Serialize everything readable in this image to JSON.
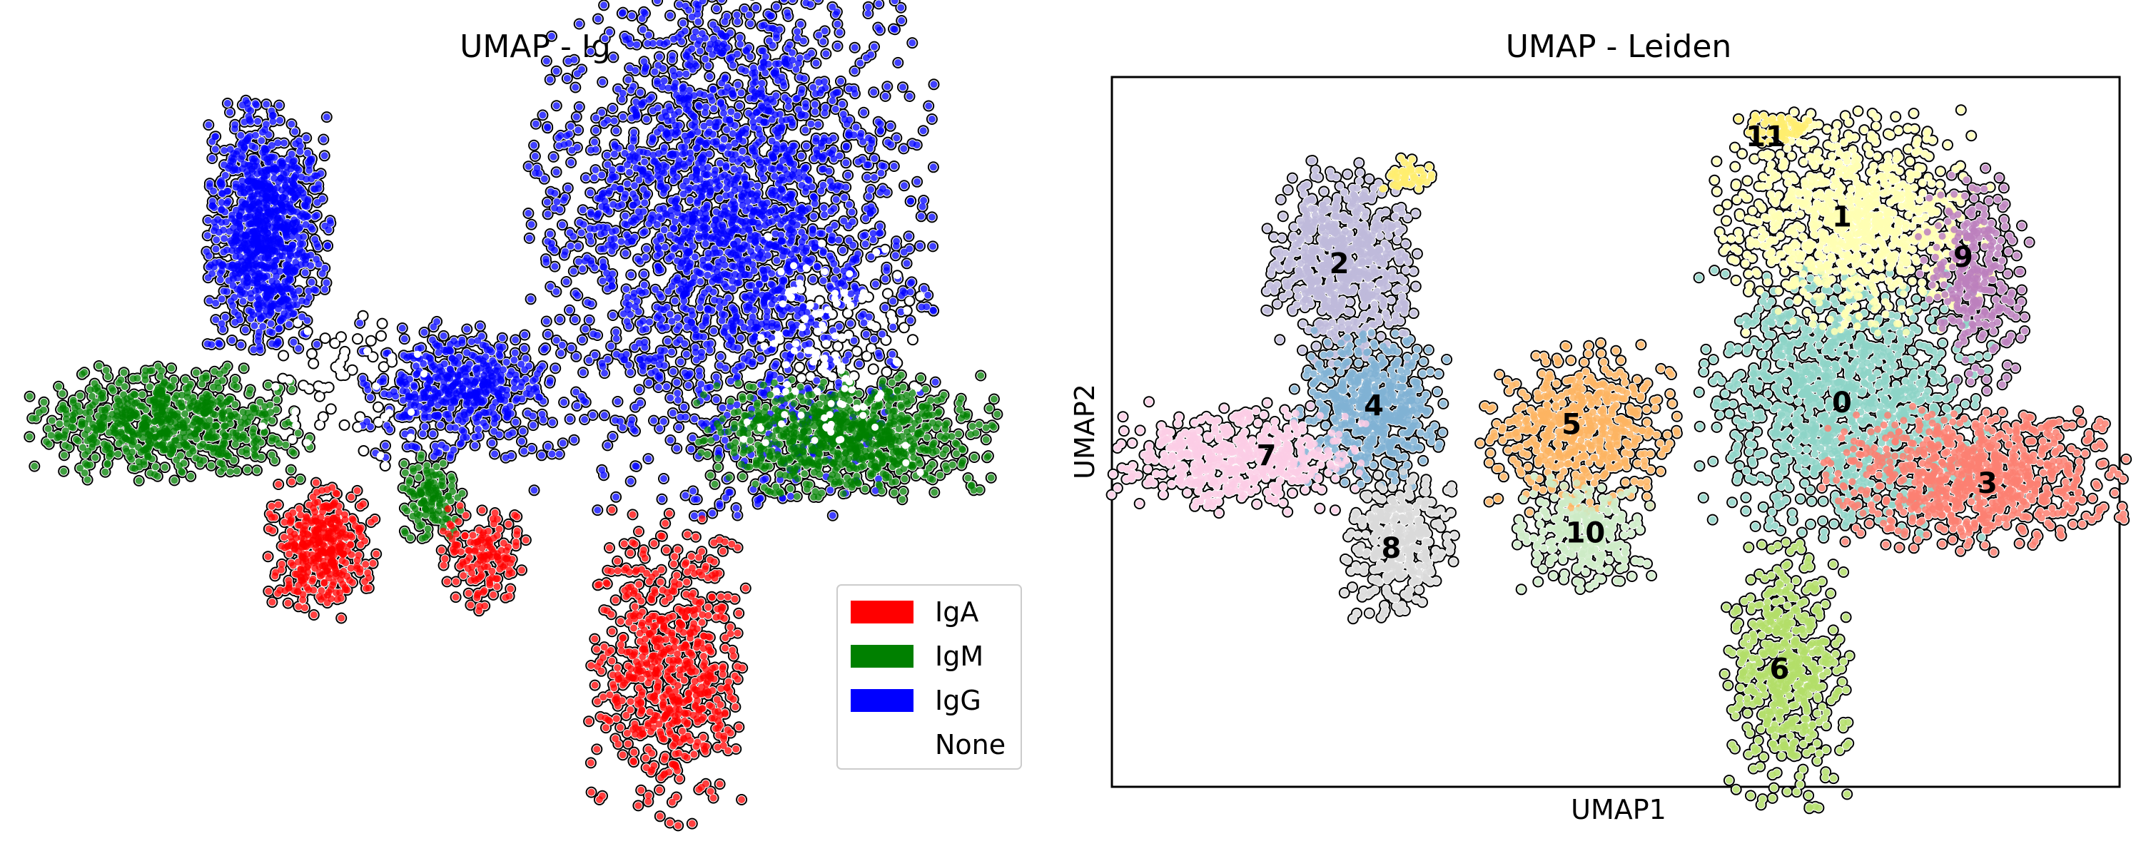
{
  "chart_data": [
    {
      "type": "scatter",
      "title": "UMAP - Ig",
      "xlabel": "",
      "ylabel": "",
      "legend": {
        "placement": "bottom-right",
        "entries": [
          {
            "name": "IgA",
            "color": "#ff0000"
          },
          {
            "name": "IgM",
            "color": "#008000"
          },
          {
            "name": "IgG",
            "color": "#0000ff"
          },
          {
            "name": "None",
            "color": "#ffffff"
          }
        ]
      },
      "colors": {
        "IgA": "#ff0000",
        "IgM": "#008000",
        "IgG": "#0000ff",
        "None": "#ffffff"
      },
      "groups": [
        {
          "category": "IgG",
          "cx": 2.2,
          "cy": 13.4,
          "rx": 1.0,
          "ry": 2.2,
          "n": 900
        },
        {
          "category": "IgG",
          "cx": 15.5,
          "cy": 13.8,
          "rx": 3.2,
          "ry": 5.2,
          "n": 2200
        },
        {
          "category": "IgG",
          "cx": 7.8,
          "cy": 8.3,
          "rx": 1.6,
          "ry": 1.2,
          "n": 450
        },
        {
          "category": "IgM",
          "cx": -0.6,
          "cy": 7.2,
          "rx": 2.2,
          "ry": 1.0,
          "n": 650
        },
        {
          "category": "IgM",
          "cx": 18.8,
          "cy": 6.8,
          "rx": 2.4,
          "ry": 1.1,
          "n": 800
        },
        {
          "category": "IgM",
          "cx": 6.9,
          "cy": 4.8,
          "rx": 0.5,
          "ry": 0.8,
          "n": 120
        },
        {
          "category": "IgA",
          "cx": 3.8,
          "cy": 3.2,
          "rx": 0.9,
          "ry": 1.2,
          "n": 350
        },
        {
          "category": "IgA",
          "cx": 8.5,
          "cy": 3.0,
          "rx": 0.7,
          "ry": 1.0,
          "n": 140
        },
        {
          "category": "IgA",
          "cx": 13.8,
          "cy": -0.5,
          "rx": 1.3,
          "ry": 2.8,
          "n": 600
        },
        {
          "category": "None",
          "cx": 4.5,
          "cy": 8.5,
          "rx": 1.5,
          "ry": 1.5,
          "n": 60
        },
        {
          "category": "None",
          "cx": 18.5,
          "cy": 9.5,
          "rx": 1.5,
          "ry": 2.2,
          "n": 130
        }
      ]
    },
    {
      "type": "scatter",
      "title": "UMAP - Leiden",
      "xlabel": "UMAP1",
      "ylabel": "UMAP2",
      "clusters": [
        {
          "label": "0",
          "color": "#8dd3c7",
          "cx": 16.5,
          "cy": 8.0,
          "rx": 2.3,
          "ry": 2.4,
          "n": 1100
        },
        {
          "label": "1",
          "color": "#ffffb3",
          "cx": 16.7,
          "cy": 13.8,
          "rx": 2.2,
          "ry": 2.0,
          "n": 900
        },
        {
          "label": "2",
          "color": "#bebada",
          "cx": 2.0,
          "cy": 12.5,
          "rx": 1.2,
          "ry": 1.8,
          "n": 650
        },
        {
          "label": "3",
          "color": "#fb8072",
          "cx": 20.2,
          "cy": 5.5,
          "rx": 2.4,
          "ry": 1.3,
          "n": 800
        },
        {
          "label": "4",
          "color": "#80b1d3",
          "cx": 2.8,
          "cy": 7.8,
          "rx": 1.2,
          "ry": 1.4,
          "n": 480
        },
        {
          "label": "5",
          "color": "#fdb462",
          "cx": 8.8,
          "cy": 7.2,
          "rx": 1.6,
          "ry": 1.5,
          "n": 500
        },
        {
          "label": "6",
          "color": "#b3de69",
          "cx": 14.8,
          "cy": -0.7,
          "rx": 1.0,
          "ry": 2.4,
          "n": 500
        },
        {
          "label": "7",
          "color": "#fccde5",
          "cx": -1.0,
          "cy": 6.2,
          "rx": 2.0,
          "ry": 1.0,
          "n": 500
        },
        {
          "label": "8",
          "color": "#d9d9d9",
          "cx": 3.6,
          "cy": 3.4,
          "rx": 0.9,
          "ry": 1.3,
          "n": 320
        },
        {
          "label": "9",
          "color": "#bc80bd",
          "cx": 20.2,
          "cy": 12.0,
          "rx": 0.9,
          "ry": 2.0,
          "n": 280
        },
        {
          "label": "10",
          "color": "#ccebc5",
          "cx": 8.9,
          "cy": 3.8,
          "rx": 1.1,
          "ry": 1.0,
          "n": 260
        },
        {
          "label": "11",
          "color": "#ffed6f",
          "cx": 14.5,
          "cy": 16.9,
          "rx": 0.6,
          "ry": 0.3,
          "n": 60
        },
        {
          "label": "",
          "color": "#ffed6f",
          "cx": 3.8,
          "cy": 15.3,
          "rx": 0.6,
          "ry": 0.4,
          "n": 50
        }
      ],
      "label_positions": [
        {
          "label": "0",
          "x": 16.4,
          "y": 8.0
        },
        {
          "label": "1",
          "x": 16.4,
          "y": 14.0
        },
        {
          "label": "2",
          "x": 1.9,
          "y": 12.5
        },
        {
          "label": "3",
          "x": 20.6,
          "y": 5.4
        },
        {
          "label": "4",
          "x": 2.9,
          "y": 7.9
        },
        {
          "label": "5",
          "x": 8.6,
          "y": 7.3
        },
        {
          "label": "6",
          "x": 14.6,
          "y": -0.6
        },
        {
          "label": "7",
          "x": -0.2,
          "y": 6.3
        },
        {
          "label": "8",
          "x": 3.4,
          "y": 3.3
        },
        {
          "label": "9",
          "x": 19.9,
          "y": 12.7
        },
        {
          "label": "10",
          "x": 9.0,
          "y": 3.8
        },
        {
          "label": "11",
          "x": 14.2,
          "y": 16.6
        }
      ]
    }
  ]
}
